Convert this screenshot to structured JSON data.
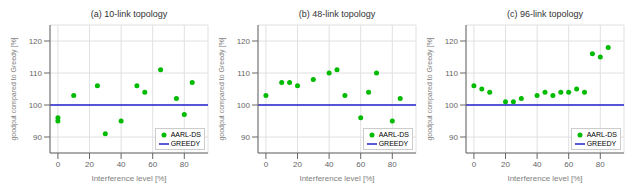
{
  "chart_data": [
    {
      "type": "scatter",
      "title": "(a) 10-link topology",
      "xlabel": "Interference level [%]",
      "ylabel": "goodput compared to Greedy [%]",
      "xlim": [
        -5,
        95
      ],
      "ylim": [
        85,
        125
      ],
      "xticks": [
        0,
        20,
        40,
        60,
        80
      ],
      "yticks": [
        90,
        100,
        110,
        120
      ],
      "grid": true,
      "legend": "lower right",
      "series": [
        {
          "name": "AARL-DS",
          "type": "scatter",
          "color": "#00bb00",
          "marker": "point",
          "x": [
            0,
            0,
            10,
            25,
            30,
            40,
            50,
            55,
            65,
            75,
            80,
            85
          ],
          "values": [
            95,
            96,
            103,
            106,
            91,
            95,
            106,
            104,
            111,
            102,
            97,
            107
          ]
        },
        {
          "name": "GREEDY",
          "type": "hline",
          "color": "#2222cc",
          "values": [
            100
          ]
        }
      ]
    },
    {
      "type": "scatter",
      "title": "(b) 48-link topology",
      "xlabel": "Interference level [%]",
      "ylabel": "goodput compared to Greedy [%]",
      "xlim": [
        -5,
        95
      ],
      "ylim": [
        85,
        125
      ],
      "xticks": [
        0,
        20,
        40,
        60,
        80
      ],
      "yticks": [
        90,
        100,
        110,
        120
      ],
      "grid": true,
      "legend": "lower right",
      "series": [
        {
          "name": "AARL-DS",
          "type": "scatter",
          "color": "#00bb00",
          "marker": "point",
          "x": [
            0,
            10,
            15,
            20,
            30,
            40,
            45,
            50,
            60,
            65,
            70,
            80,
            85
          ],
          "values": [
            103,
            107,
            107,
            106,
            108,
            110,
            111,
            103,
            96,
            104,
            110,
            95,
            102
          ]
        },
        {
          "name": "GREEDY",
          "type": "hline",
          "color": "#2222cc",
          "values": [
            100
          ]
        }
      ]
    },
    {
      "type": "scatter",
      "title": "(c) 96-link topology",
      "xlabel": "Interference level [%]",
      "ylabel": "goodput compared to Greedy [%]",
      "xlim": [
        -5,
        95
      ],
      "ylim": [
        85,
        125
      ],
      "xticks": [
        0,
        20,
        40,
        60,
        80
      ],
      "yticks": [
        90,
        100,
        110,
        120
      ],
      "grid": true,
      "legend": "lower right",
      "series": [
        {
          "name": "AARL-DS",
          "type": "scatter",
          "color": "#00bb00",
          "marker": "point",
          "x": [
            0,
            5,
            10,
            20,
            25,
            30,
            40,
            45,
            50,
            55,
            60,
            65,
            70,
            75,
            80,
            85
          ],
          "values": [
            106,
            105,
            104,
            101,
            101,
            102,
            103,
            104,
            103,
            104,
            104,
            105,
            104,
            116,
            115,
            118
          ]
        },
        {
          "name": "GREEDY",
          "type": "hline",
          "color": "#2222cc",
          "values": [
            100
          ]
        }
      ]
    }
  ]
}
